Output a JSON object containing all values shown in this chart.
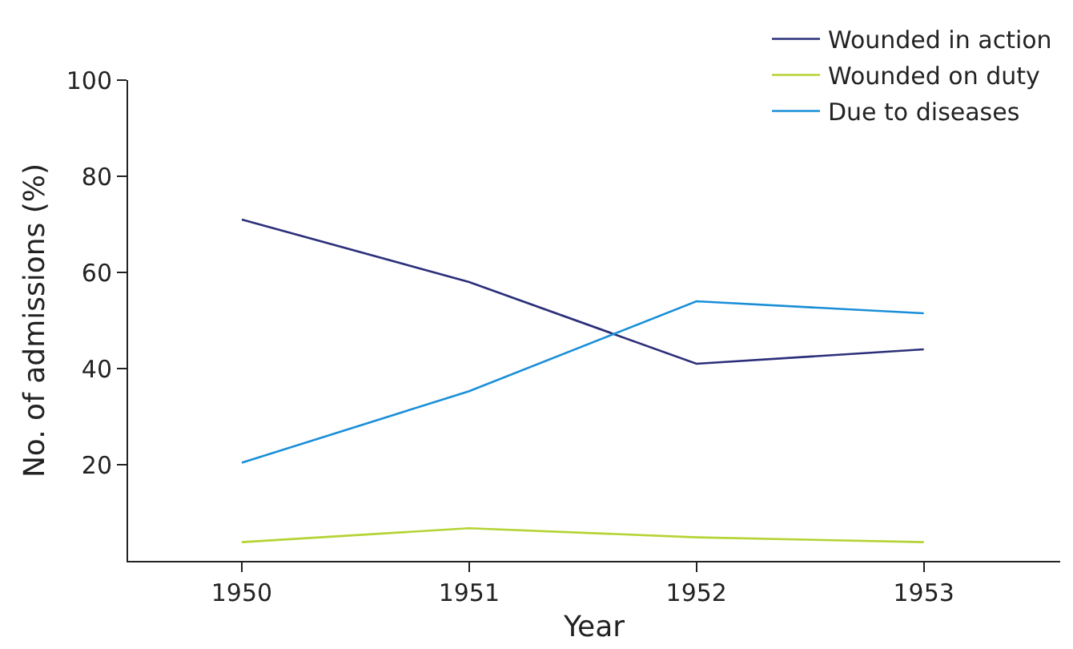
{
  "chart_data": {
    "type": "line",
    "xlabel": "Year",
    "ylabel": "No. of admissions (%)",
    "x": [
      1950,
      1951,
      1952,
      1953
    ],
    "series": [
      {
        "name": "Wounded in action",
        "color": "#2b2f7a",
        "values": [
          71,
          58,
          41,
          44
        ]
      },
      {
        "name": "Wounded on duty",
        "color": "#b5d334",
        "values": [
          3.9,
          6.8,
          4.9,
          3.9
        ]
      },
      {
        "name": "Due to diseases",
        "color": "#1a8fd8",
        "values": [
          20.4,
          35.3,
          54,
          51.5
        ]
      }
    ],
    "xlim": [
      1949.5,
      1953.6
    ],
    "xticks": [
      1950,
      1951,
      1952,
      1953
    ],
    "ylim": [
      0,
      100
    ],
    "yticks": [
      20,
      40,
      60,
      80,
      100
    ],
    "grid": false,
    "legend": "top right",
    "marker": "none",
    "line_style": "solid"
  }
}
